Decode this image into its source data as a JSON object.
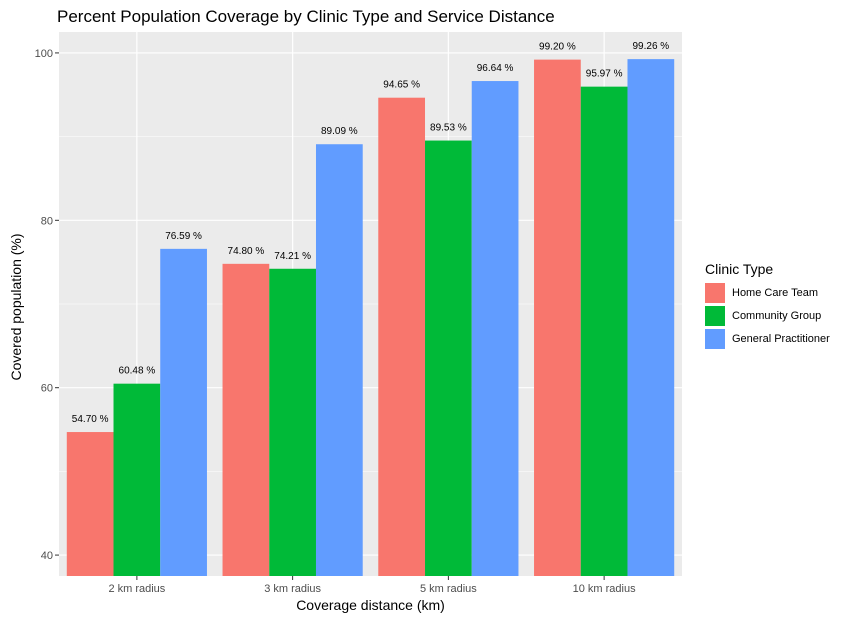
{
  "chart_data": {
    "type": "bar",
    "title": "Percent Population Coverage by Clinic Type and Service Distance",
    "xlabel": "Coverage distance (km)",
    "ylabel": "Covered population (%)",
    "categories": [
      "2 km radius",
      "3 km radius",
      "5 km radius",
      "10 km radius"
    ],
    "series": [
      {
        "name": "Home Care Team",
        "color": "#F8766D",
        "values": [
          54.7,
          74.8,
          94.65,
          99.2
        ],
        "labels": [
          "54.70 %",
          "74.80 %",
          "94.65 %",
          "99.20 %"
        ]
      },
      {
        "name": "Community Group",
        "color": "#00BA38",
        "values": [
          60.48,
          74.21,
          89.53,
          95.97
        ],
        "labels": [
          "60.48 %",
          "74.21 %",
          "89.53 %",
          "95.97 %"
        ]
      },
      {
        "name": "General Practitioner",
        "color": "#619CFF",
        "values": [
          76.59,
          89.09,
          96.64,
          99.26
        ],
        "labels": [
          "76.59 %",
          "89.09 %",
          "96.64 %",
          "99.26 %"
        ]
      }
    ],
    "ylim": [
      37.5,
      102.5
    ],
    "y_ticks": [
      "40",
      "60",
      "80",
      "100"
    ],
    "legend_title": "Clinic Type",
    "legend_position": "right",
    "grid": true,
    "panel_background": "#EBEBEB",
    "grid_color": "#FFFFFF"
  }
}
